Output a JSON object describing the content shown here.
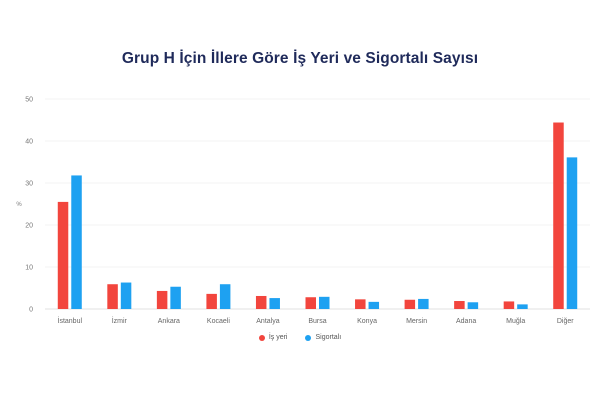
{
  "chart_data": {
    "type": "bar",
    "title": "Grup H İçin İllere Göre İş Yeri ve Sigortalı Sayısı",
    "ylabel": "%",
    "xlabel": "",
    "ylim": [
      0,
      50
    ],
    "yticks": [
      0,
      10,
      20,
      30,
      40,
      50
    ],
    "grid": true,
    "legend_position": "bottom-center",
    "categories": [
      "İstanbul",
      "İzmir",
      "Ankara",
      "Kocaeli",
      "Antalya",
      "Bursa",
      "Konya",
      "Mersin",
      "Adana",
      "Muğla",
      "Diğer"
    ],
    "series": [
      {
        "name": "İş yeri",
        "color": "#f2453d",
        "values": [
          25.5,
          5.9,
          4.3,
          3.6,
          3.1,
          2.8,
          2.3,
          2.2,
          1.9,
          1.8,
          44.4
        ]
      },
      {
        "name": "Sigortalı",
        "color": "#1ea1f1",
        "values": [
          31.8,
          6.3,
          5.3,
          5.9,
          2.6,
          2.9,
          1.7,
          2.4,
          1.6,
          1.1,
          36.1
        ]
      }
    ]
  }
}
